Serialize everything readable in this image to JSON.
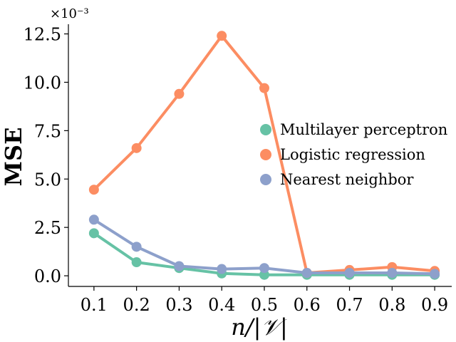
{
  "chart_data": {
    "type": "line",
    "title": "",
    "xlabel": "n/|𝒱|",
    "ylabel": "MSE",
    "y_multiplier": "×10⁻³",
    "x": [
      0.1,
      0.2,
      0.3,
      0.4,
      0.5,
      0.6,
      0.7,
      0.8,
      0.9
    ],
    "x_tick_labels": [
      "0.1",
      "0.2",
      "0.3",
      "0.4",
      "0.5",
      "0.6",
      "0.7",
      "0.8",
      "0.9"
    ],
    "y_ticks": [
      0.0,
      2.5,
      5.0,
      7.5,
      10.0,
      12.5
    ],
    "y_tick_labels": [
      "0.0",
      "2.5",
      "5.0",
      "7.5",
      "10.0",
      "12.5"
    ],
    "xlim": [
      0.04,
      0.94
    ],
    "ylim": [
      -0.55,
      13.0
    ],
    "grid": false,
    "legend_position": "center-right",
    "series": [
      {
        "name": "Multilayer perceptron",
        "color": "#66c2a5",
        "values": [
          2.2,
          0.7,
          0.4,
          0.12,
          0.05,
          0.05,
          0.05,
          0.05,
          0.05
        ]
      },
      {
        "name": "Logistic regression",
        "color": "#fc8d62",
        "values": [
          4.45,
          6.6,
          9.4,
          12.4,
          9.7,
          0.15,
          0.3,
          0.45,
          0.25
        ]
      },
      {
        "name": "Nearest neighbor",
        "color": "#8da0cb",
        "values": [
          2.9,
          1.5,
          0.5,
          0.35,
          0.4,
          0.15,
          0.15,
          0.15,
          0.1
        ]
      }
    ]
  }
}
